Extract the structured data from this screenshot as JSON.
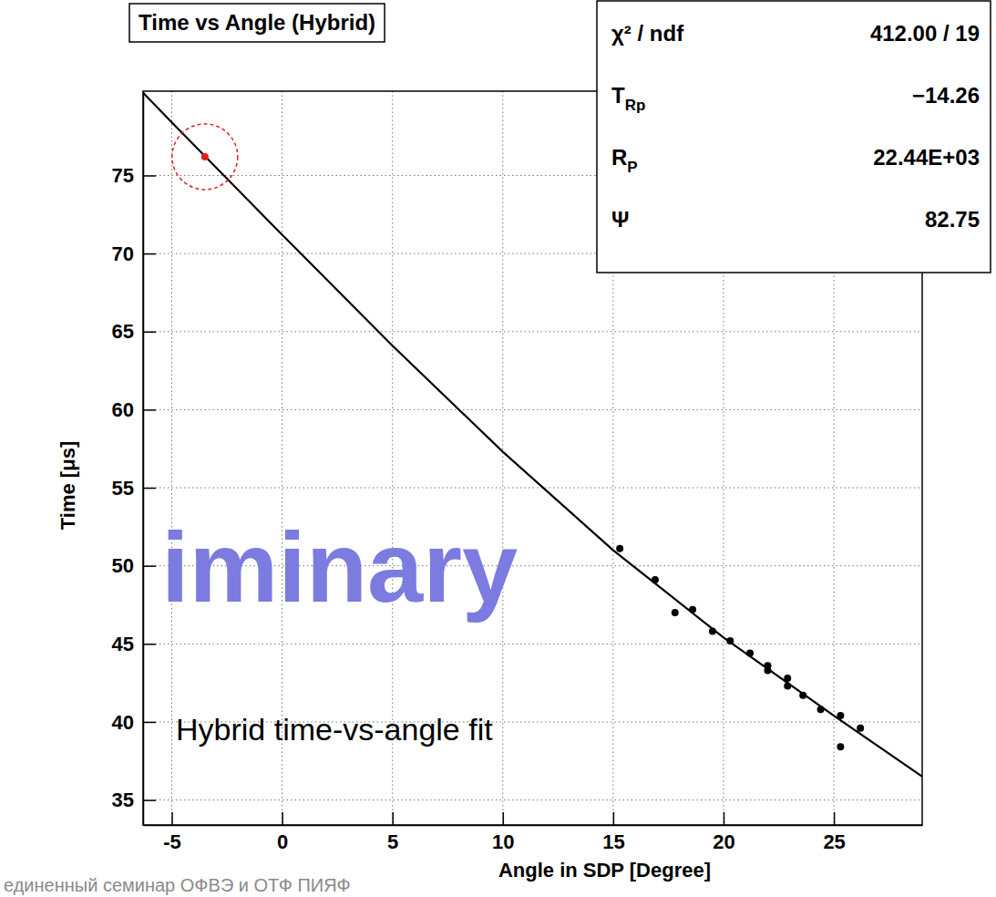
{
  "chart_data": {
    "type": "scatter",
    "title": "Time vs Angle (Hybrid)",
    "x_label": "Angle in SDP [Degree]",
    "y_label": "Time [μs]",
    "xlim": [
      -6.3,
      29
    ],
    "ylim": [
      33.4,
      80.4
    ],
    "xticks": [
      -5,
      0,
      5,
      10,
      15,
      20,
      25
    ],
    "yticks": [
      35,
      40,
      45,
      50,
      55,
      60,
      65,
      70,
      75
    ],
    "grid": true,
    "series": [
      {
        "type": "line",
        "color": "#000000",
        "line_style": "solid",
        "x": [
          -6.3,
          -5,
          0,
          5,
          10,
          15,
          20,
          25,
          29
        ],
        "values": [
          80.3,
          78.4,
          71.2,
          64.1,
          57.3,
          51.0,
          45.4,
          40.4,
          36.5
        ]
      },
      {
        "type": "scatter",
        "color": "#000000",
        "marker": "circle",
        "x": [
          15.3,
          16.9,
          17.8,
          18.6,
          19.5,
          20.3,
          21.2,
          22.0,
          22.0,
          22.9,
          22.9,
          23.6,
          24.4,
          25.3,
          25.3,
          26.2
        ],
        "values": [
          51.1,
          49.1,
          47.0,
          47.2,
          45.8,
          45.2,
          44.4,
          43.6,
          43.3,
          42.8,
          42.3,
          41.7,
          40.8,
          40.4,
          38.4,
          39.6
        ]
      },
      {
        "type": "scatter",
        "color": "#e02020",
        "marker": "circled",
        "x": [
          -3.5
        ],
        "values": [
          76.2
        ]
      }
    ],
    "stats": [
      {
        "label": "χ² / ndf",
        "value": "412.00 / 19"
      },
      {
        "label": "T",
        "subscript": "Rp",
        "value": "−14.26"
      },
      {
        "label": "R",
        "subscript": "P",
        "value": "22.44E+03"
      },
      {
        "label": "Ψ",
        "value": "82.75"
      }
    ],
    "annotations": [
      {
        "text": "Hybrid time-vs-angle fit"
      }
    ],
    "watermark": "iminary",
    "footer": "единенный семинар ОФВЭ и ОТФ ПИЯФ"
  }
}
